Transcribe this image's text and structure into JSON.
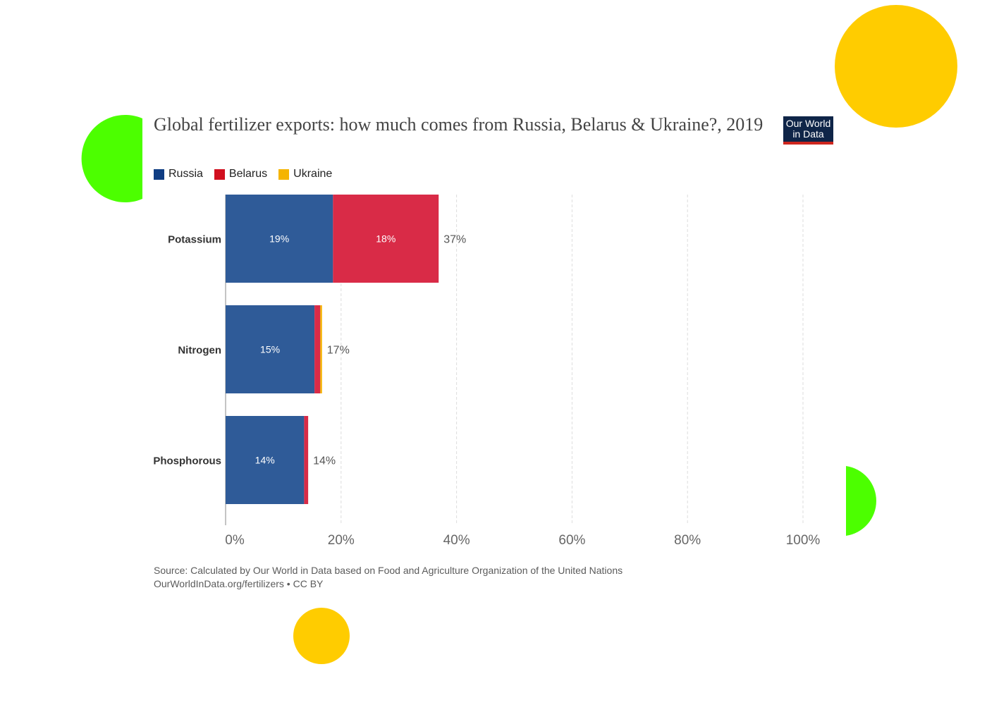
{
  "title": "Global fertilizer exports: how much comes from Russia, Belarus & Ukraine?, 2019",
  "logo": {
    "line1": "Our World",
    "line2": "in Data"
  },
  "legend": [
    {
      "name": "Russia",
      "color": "#0f3d83"
    },
    {
      "name": "Belarus",
      "color": "#d1101f"
    },
    {
      "name": "Ukraine",
      "color": "#f5b400"
    }
  ],
  "chart_data": {
    "type": "bar",
    "orientation": "horizontal",
    "stacked": true,
    "categories": [
      "Potassium",
      "Nitrogen",
      "Phosphorous"
    ],
    "series": [
      {
        "name": "Russia",
        "color": "#2f5b98",
        "values": [
          18.6,
          15.4,
          13.6
        ],
        "labels": [
          "19%",
          "15%",
          "14%"
        ]
      },
      {
        "name": "Belarus",
        "color": "#d92b47",
        "values": [
          18.3,
          1.0,
          0.7
        ],
        "labels": [
          "18%",
          "",
          ""
        ]
      },
      {
        "name": "Ukraine",
        "color": "#f5b400",
        "values": [
          0.0,
          0.3,
          0.0
        ],
        "labels": [
          "",
          "",
          ""
        ]
      }
    ],
    "totals": [
      "37%",
      "17%",
      "14%"
    ],
    "xlim": [
      0,
      100
    ],
    "xticks": [
      "0%",
      "20%",
      "40%",
      "60%",
      "80%",
      "100%"
    ],
    "xtick_values": [
      0,
      20,
      40,
      60,
      80,
      100
    ],
    "grid": true
  },
  "source": {
    "line1": "Source: Calculated by Our World in Data based on Food and Agriculture Organization of the United Nations",
    "line2": "OurWorldInData.org/fertilizers • CC BY"
  },
  "decorations": {
    "circle_colors": [
      "#ffcc00",
      "#4cff00"
    ]
  }
}
